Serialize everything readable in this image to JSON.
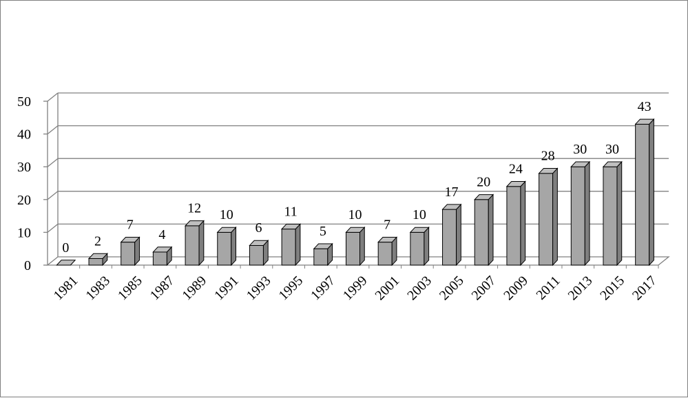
{
  "chart_data": {
    "type": "bar",
    "title": "",
    "xlabel": "",
    "ylabel": "",
    "categories": [
      "1981",
      "1983",
      "1985",
      "1987",
      "1989",
      "1991",
      "1993",
      "1995",
      "1997",
      "1999",
      "2001",
      "2003",
      "2005",
      "2007",
      "2009",
      "2011",
      "2013",
      "2015",
      "2017"
    ],
    "values": [
      0,
      2,
      7,
      4,
      12,
      10,
      6,
      11,
      5,
      10,
      7,
      10,
      17,
      20,
      24,
      28,
      30,
      30,
      43
    ],
    "ylim": [
      0,
      50
    ],
    "yticks": [
      0,
      10,
      20,
      30,
      40,
      50
    ],
    "grid": true,
    "style": "3d-column",
    "colors": {
      "bar_front": "#a6a6a6",
      "bar_top": "#bfbfbf",
      "bar_side": "#7f7f7f",
      "bar_edge": "#000000",
      "grid": "#808080",
      "floor": "#a6a6a6"
    }
  }
}
